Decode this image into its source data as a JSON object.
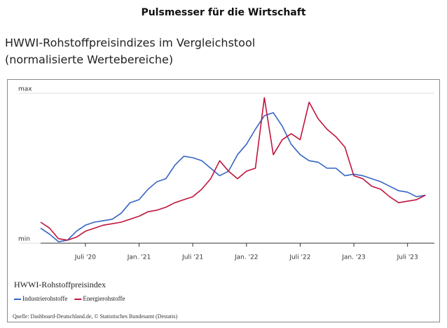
{
  "header": "Pulsmesser für die Wirtschaft",
  "chart_data": {
    "type": "line",
    "title": "HWWI-Rohstoffpreisindizes im Vergleichstool",
    "subtitle": "(normalisierte Wertebereiche)",
    "legend_title": "HWWI-Rohstoffpreisindex",
    "source": "Quelle: Dashboard-Deutschland.de, © Statistisches Bundesamt (Destatis)",
    "x": [
      "2020-02",
      "2020-03",
      "2020-04",
      "2020-05",
      "2020-06",
      "2020-07",
      "2020-08",
      "2020-09",
      "2020-10",
      "2020-11",
      "2020-12",
      "2021-01",
      "2021-02",
      "2021-03",
      "2021-04",
      "2021-05",
      "2021-06",
      "2021-07",
      "2021-08",
      "2021-09",
      "2021-10",
      "2021-11",
      "2021-12",
      "2022-01",
      "2022-02",
      "2022-03",
      "2022-04",
      "2022-05",
      "2022-06",
      "2022-07",
      "2022-08",
      "2022-09",
      "2022-10",
      "2022-11",
      "2022-12",
      "2023-01",
      "2023-02",
      "2023-03",
      "2023-04",
      "2023-05",
      "2023-06",
      "2023-07",
      "2023-08",
      "2023-09"
    ],
    "series": [
      {
        "name": "Industrierohstoffe",
        "color": "#3565c4",
        "values": [
          10,
          6,
          1,
          2,
          8,
          12,
          14,
          15,
          16,
          20,
          27,
          29,
          36,
          41,
          43,
          52,
          58,
          57,
          55,
          50,
          45,
          48,
          59,
          66,
          76,
          85,
          87,
          78,
          66,
          59,
          55,
          54,
          50,
          50,
          45,
          46,
          45,
          43,
          41,
          38,
          35,
          34,
          31,
          32
        ]
      },
      {
        "name": "Energierohstoffe",
        "color": "#c0143c",
        "values": [
          14,
          10,
          3,
          2,
          4,
          8,
          10,
          12,
          13,
          14,
          16,
          18,
          21,
          22,
          24,
          27,
          29,
          31,
          36,
          43,
          55,
          48,
          43,
          48,
          50,
          97,
          59,
          69,
          73,
          69,
          94,
          83,
          76,
          71,
          64,
          45,
          43,
          38,
          36,
          31,
          27,
          28,
          29,
          32
        ]
      }
    ],
    "xlim": [
      "2020-02",
      "2023-10"
    ],
    "xticks": [
      {
        "value": "2020-07",
        "label": "Juli '20"
      },
      {
        "value": "2021-01",
        "label": "Jan. '21"
      },
      {
        "value": "2021-07",
        "label": "Juli '21"
      },
      {
        "value": "2022-01",
        "label": "Jan. '22"
      },
      {
        "value": "2022-07",
        "label": "Juli '22"
      },
      {
        "value": "2023-01",
        "label": "Jan. '23"
      },
      {
        "value": "2023-07",
        "label": "Juli '23"
      }
    ],
    "ylim": [
      0,
      100
    ],
    "yticks": [
      {
        "value": 0,
        "label": "min"
      },
      {
        "value": 100,
        "label": "max"
      }
    ],
    "grid": true
  }
}
